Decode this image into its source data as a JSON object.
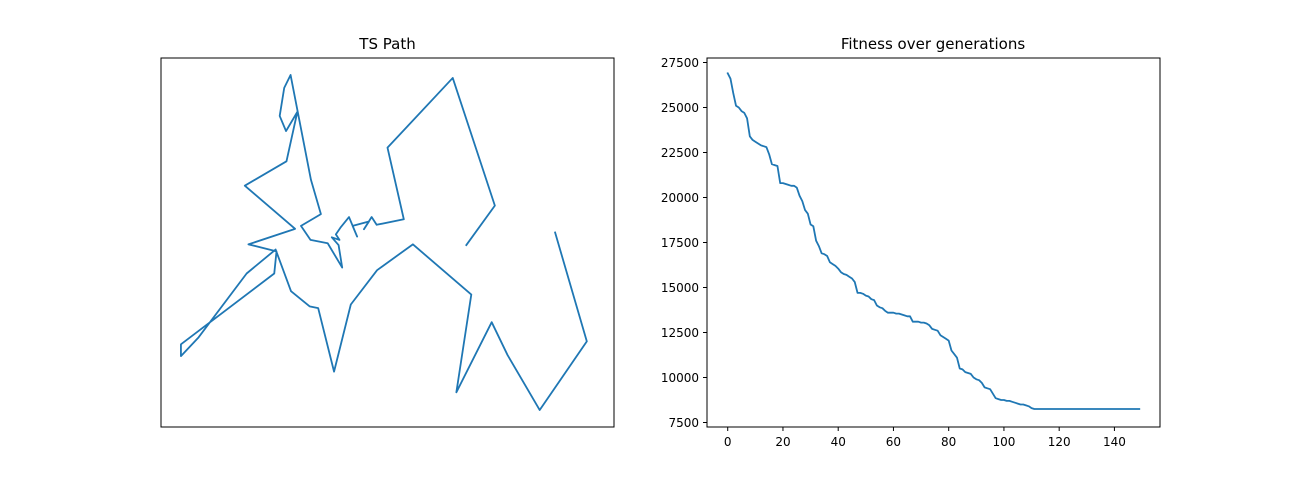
{
  "colors": {
    "line": "#1f77b4",
    "frame": "#000000",
    "background": "#ffffff"
  },
  "chart_data": [
    {
      "type": "line",
      "title": "TS Path",
      "xlabel": "",
      "ylabel": "",
      "xlim": [
        0,
        100
      ],
      "ylim": [
        0,
        100
      ],
      "axis_ticks": false,
      "grid": false,
      "x": [
        67.4,
        73.7,
        64.4,
        50.0,
        53.6,
        47.6,
        46.5,
        44.8,
        45.9,
        42.3,
        43.3,
        41.5,
        39.6,
        38.6,
        39.4,
        37.7,
        39.2,
        40.0,
        36.8,
        33.0,
        30.9,
        35.3,
        33.1,
        28.6,
        27.2,
        26.2,
        27.6,
        30.1,
        27.7,
        18.5,
        29.6,
        19.3,
        25.5,
        25.0,
        4.4,
        4.4,
        8.3,
        18.9,
        25.3,
        28.7,
        32.8,
        34.7,
        38.2,
        41.9,
        47.7,
        55.6,
        68.5,
        65.2,
        73.0,
        76.5,
        83.6,
        94.0,
        87.0
      ],
      "y": [
        49.3,
        60.0,
        94.6,
        75.7,
        56.3,
        54.8,
        56.9,
        53.6,
        55.7,
        54.5,
        51.6,
        56.9,
        54.0,
        52.2,
        50.7,
        51.4,
        49.3,
        43.2,
        49.8,
        50.7,
        54.5,
        57.7,
        67.0,
        95.4,
        91.9,
        84.3,
        80.2,
        85.4,
        72.0,
        65.4,
        53.7,
        49.5,
        47.6,
        41.6,
        22.4,
        19.2,
        24.3,
        41.6,
        48.1,
        36.8,
        32.7,
        32.2,
        15.0,
        33.2,
        42.5,
        49.5,
        35.9,
        9.4,
        28.4,
        19.5,
        4.6,
        23.2,
        52.7
      ]
    },
    {
      "type": "line",
      "title": "Fitness over generations",
      "xlabel": "",
      "ylabel": "",
      "xlim": [
        -7.5,
        156.5
      ],
      "ylim": [
        7250,
        27750
      ],
      "xticks": [
        0,
        20,
        40,
        60,
        80,
        100,
        120,
        140
      ],
      "yticks": [
        7500,
        10000,
        12500,
        15000,
        17500,
        20000,
        22500,
        25000,
        27500
      ],
      "grid": false,
      "x": [
        0,
        1,
        2,
        3,
        4,
        5,
        6,
        7,
        8,
        9,
        10,
        11,
        12,
        13,
        14,
        15,
        16,
        17,
        18,
        19,
        20,
        21,
        22,
        23,
        24,
        25,
        26,
        27,
        28,
        29,
        30,
        31,
        32,
        33,
        34,
        35,
        36,
        37,
        38,
        39,
        40,
        41,
        42,
        43,
        44,
        45,
        46,
        47,
        48,
        49,
        50,
        51,
        52,
        53,
        54,
        55,
        56,
        57,
        58,
        59,
        60,
        61,
        62,
        63,
        64,
        65,
        66,
        67,
        68,
        69,
        70,
        71,
        72,
        73,
        74,
        75,
        76,
        77,
        78,
        79,
        80,
        81,
        82,
        83,
        84,
        85,
        86,
        87,
        88,
        89,
        90,
        91,
        92,
        93,
        94,
        95,
        96,
        97,
        98,
        99,
        100,
        101,
        102,
        103,
        104,
        105,
        106,
        107,
        108,
        109,
        110,
        111,
        112,
        113,
        114,
        115,
        116,
        117,
        118,
        119,
        120,
        121,
        122,
        123,
        124,
        125,
        126,
        127,
        128,
        129,
        130,
        131,
        132,
        133,
        134,
        135,
        136,
        137,
        138,
        139,
        140,
        141,
        142,
        143,
        144,
        145,
        146,
        147,
        148,
        149
      ],
      "values": [
        26900,
        26600,
        25800,
        25100,
        25000,
        24800,
        24700,
        24400,
        23400,
        23200,
        23100,
        23000,
        22900,
        22850,
        22800,
        22400,
        21850,
        21800,
        21750,
        20800,
        20800,
        20750,
        20700,
        20650,
        20650,
        20550,
        20100,
        19800,
        19300,
        19100,
        18500,
        18400,
        17600,
        17300,
        16900,
        16850,
        16750,
        16400,
        16300,
        16200,
        16050,
        15850,
        15750,
        15700,
        15600,
        15500,
        15300,
        14700,
        14700,
        14650,
        14550,
        14500,
        14350,
        14300,
        14000,
        13900,
        13850,
        13700,
        13600,
        13600,
        13600,
        13550,
        13550,
        13500,
        13450,
        13400,
        13400,
        13100,
        13100,
        13100,
        13050,
        13050,
        13000,
        12900,
        12700,
        12650,
        12600,
        12350,
        12250,
        12150,
        12050,
        11500,
        11300,
        11100,
        10500,
        10450,
        10300,
        10250,
        10200,
        10000,
        9900,
        9850,
        9700,
        9450,
        9400,
        9350,
        9100,
        8850,
        8800,
        8750,
        8750,
        8700,
        8700,
        8650,
        8600,
        8550,
        8500,
        8500,
        8450,
        8400,
        8300,
        8250,
        8250,
        8250,
        8250,
        8250,
        8250,
        8250,
        8250,
        8250,
        8250,
        8250,
        8250,
        8250,
        8250,
        8250,
        8250,
        8250,
        8250,
        8250,
        8250,
        8250,
        8250,
        8250,
        8250,
        8250,
        8250,
        8250,
        8250,
        8250,
        8250,
        8250,
        8250,
        8250,
        8250,
        8250,
        8250,
        8250,
        8250,
        8250
      ]
    }
  ]
}
